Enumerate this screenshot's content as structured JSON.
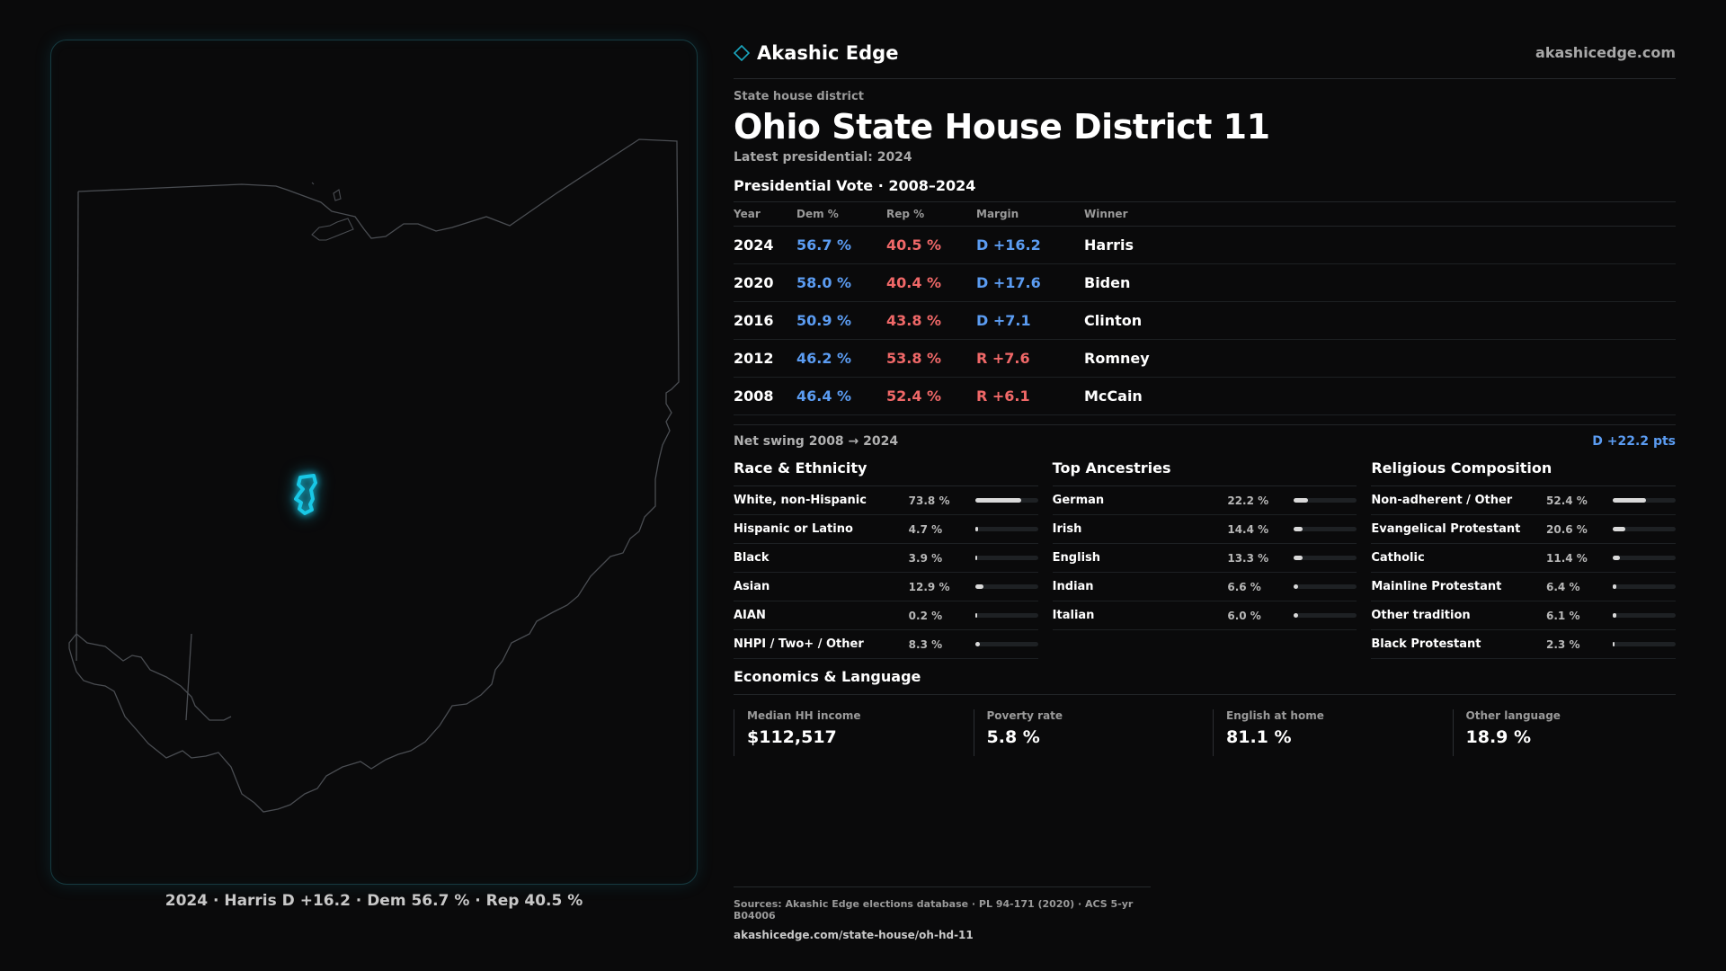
{
  "brand": {
    "name": "Akashic Edge",
    "site": "akashicedge.com",
    "accent": "#1aa7c0"
  },
  "district": {
    "kicker": "State house district",
    "title": "Ohio State House District 11",
    "latest": "Latest presidential: 2024"
  },
  "map": {
    "caption_parts": [
      "2024 · Harris D +16.2 · Dem 56.7 % · Rep 40.5 %"
    ],
    "district_color": "#18c8e6",
    "outline_color": "#4a4d52"
  },
  "votes": {
    "title": "Presidential Vote · 2008–2024",
    "headers": {
      "year": "Year",
      "dem": "Dem %",
      "rep": "Rep %",
      "margin": "Margin",
      "winner": "Winner"
    },
    "rows": [
      {
        "year": "2024",
        "dem": "56.7 %",
        "rep": "40.5 %",
        "margin": "D +16.2",
        "party": "D",
        "winner": "Harris"
      },
      {
        "year": "2020",
        "dem": "58.0 %",
        "rep": "40.4 %",
        "margin": "D +17.6",
        "party": "D",
        "winner": "Biden"
      },
      {
        "year": "2016",
        "dem": "50.9 %",
        "rep": "43.8 %",
        "margin": "D +7.1",
        "party": "D",
        "winner": "Clinton"
      },
      {
        "year": "2012",
        "dem": "46.2 %",
        "rep": "53.8 %",
        "margin": "R +7.6",
        "party": "R",
        "winner": "Romney"
      },
      {
        "year": "2008",
        "dem": "46.4 %",
        "rep": "52.4 %",
        "margin": "R +6.1",
        "party": "R",
        "winner": "McCain"
      }
    ],
    "swing_label": "Net swing 2008 → 2024",
    "swing_value": "D +22.2 pts",
    "dem_color": "#5b9cf2",
    "rep_color": "#f06868"
  },
  "demographics": [
    {
      "title": "Race & Ethnicity",
      "rows": [
        {
          "label": "White, non-Hispanic",
          "pct": "73.8 %",
          "value": 73.8
        },
        {
          "label": "Hispanic or Latino",
          "pct": "4.7 %",
          "value": 4.7
        },
        {
          "label": "Black",
          "pct": "3.9 %",
          "value": 3.9
        },
        {
          "label": "Asian",
          "pct": "12.9 %",
          "value": 12.9
        },
        {
          "label": "AIAN",
          "pct": "0.2 %",
          "value": 0.2
        },
        {
          "label": "NHPI / Two+ / Other",
          "pct": "8.3 %",
          "value": 8.3
        }
      ]
    },
    {
      "title": "Top Ancestries",
      "rows": [
        {
          "label": "German",
          "pct": "22.2 %",
          "value": 22.2
        },
        {
          "label": "Irish",
          "pct": "14.4 %",
          "value": 14.4
        },
        {
          "label": "English",
          "pct": "13.3 %",
          "value": 13.3
        },
        {
          "label": "Indian",
          "pct": "6.6 %",
          "value": 6.6
        },
        {
          "label": "Italian",
          "pct": "6.0 %",
          "value": 6.0
        }
      ]
    },
    {
      "title": "Religious Composition",
      "rows": [
        {
          "label": "Non-adherent / Other",
          "pct": "52.4 %",
          "value": 52.4
        },
        {
          "label": "Evangelical Protestant",
          "pct": "20.6 %",
          "value": 20.6
        },
        {
          "label": "Catholic",
          "pct": "11.4 %",
          "value": 11.4
        },
        {
          "label": "Mainline Protestant",
          "pct": "6.4 %",
          "value": 6.4
        },
        {
          "label": "Other tradition",
          "pct": "6.1 %",
          "value": 6.1
        },
        {
          "label": "Black Protestant",
          "pct": "2.3 %",
          "value": 2.3
        }
      ]
    }
  ],
  "economics": {
    "title": "Economics & Language",
    "items": [
      {
        "label": "Median HH income",
        "value": "$112,517"
      },
      {
        "label": "Poverty rate",
        "value": "5.8 %"
      },
      {
        "label": "English at home",
        "value": "81.1 %"
      },
      {
        "label": "Other language",
        "value": "18.9 %"
      }
    ]
  },
  "footer": {
    "sources": "Sources: Akashic Edge elections database · PL 94-171 (2020) · ACS 5-yr B04006",
    "url": "akashicedge.com/state-house/oh-hd-11"
  }
}
